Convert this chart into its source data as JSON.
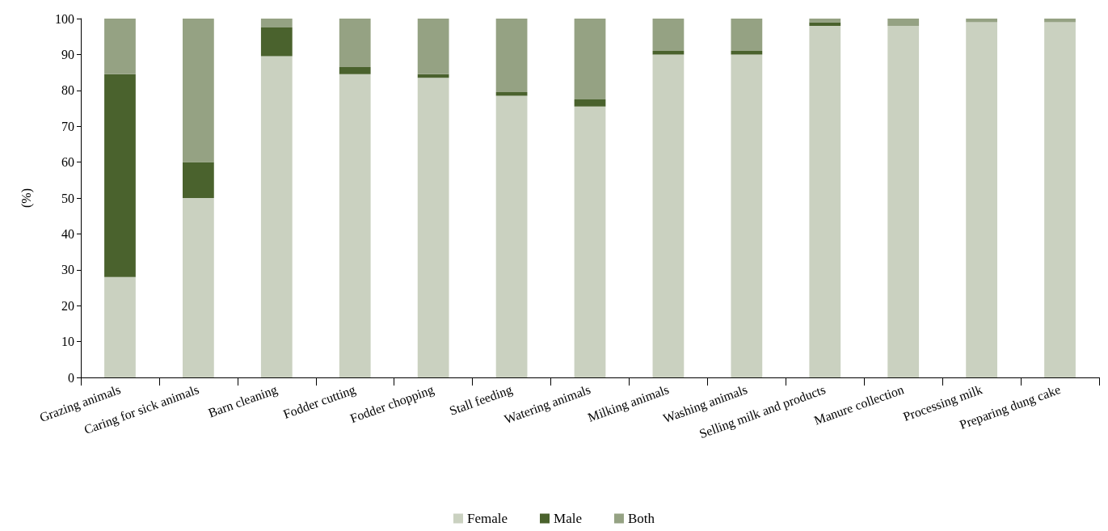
{
  "chart_data": {
    "type": "bar",
    "stacked": true,
    "ylabel": "(%)",
    "categories": [
      "Grazing animals",
      "Caring for sick animals",
      "Barn cleaning",
      "Fodder cutting",
      "Fodder chopping",
      "Stall feeding",
      "Watering animals",
      "Milking animals",
      "Washing animals",
      "Selling milk and products",
      "Manure collection",
      "Processing milk",
      "Preparing dung cake"
    ],
    "series": [
      {
        "name": "Female",
        "color": "#cad1c0",
        "values": [
          28,
          50,
          89.5,
          84.5,
          83.5,
          78.5,
          75.5,
          90,
          90,
          98,
          98,
          99,
          99
        ]
      },
      {
        "name": "Male",
        "color": "#4a622d",
        "values": [
          56.5,
          10,
          8,
          2,
          1,
          1,
          2,
          1,
          1,
          1,
          0,
          0,
          0
        ]
      },
      {
        "name": "Both",
        "color": "#95a283",
        "values": [
          15.5,
          40,
          2.5,
          13.5,
          15.5,
          20.5,
          22.5,
          9,
          9,
          1,
          2,
          1,
          1
        ]
      }
    ],
    "ylim": [
      0,
      100
    ],
    "yticks": [
      0,
      10,
      20,
      30,
      40,
      50,
      60,
      70,
      80,
      90,
      100
    ],
    "grid": false,
    "legend": "bottom"
  }
}
